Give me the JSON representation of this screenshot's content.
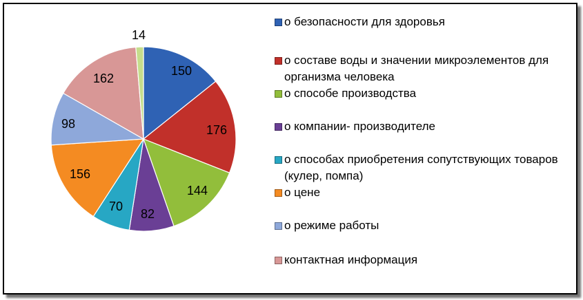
{
  "chart_data": {
    "type": "pie",
    "title": "",
    "legend_position": "right",
    "start_angle_deg": 0,
    "direction": "clockwise",
    "slices": [
      {
        "label": "о безопасности для здоровья",
        "value": 150,
        "color": "#2F62B4"
      },
      {
        "label": "о составе воды и значении микроэлементов для организма  человека",
        "value": 176,
        "color": "#C1302A"
      },
      {
        "label": "о способе производства",
        "value": 144,
        "color": "#92BE3B"
      },
      {
        "label": "о компании- производителе",
        "value": 82,
        "color": "#6A3F95"
      },
      {
        "label": "о способах приобретения сопутствующих товаров (кулер, помпа)",
        "value": 70,
        "color": "#27A7C4"
      },
      {
        "label": "о цене",
        "value": 156,
        "color": "#F48B22"
      },
      {
        "label": "о режиме работы",
        "value": 98,
        "color": "#8EA8DA"
      },
      {
        "label": "контактная информация",
        "value": 162,
        "color": "#D89796"
      },
      {
        "label": "",
        "value": 14,
        "color": "#C5DD8C"
      }
    ]
  }
}
